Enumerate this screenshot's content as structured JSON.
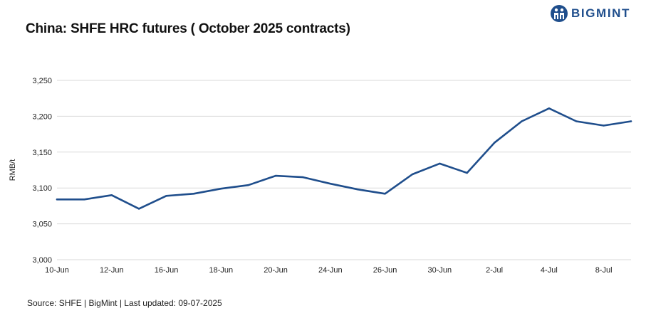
{
  "brand": {
    "name": "BIGMINT",
    "color": "#1f4e8c"
  },
  "chart_data": {
    "type": "line",
    "title": "China: SHFE HRC futures ( October 2025 contracts)",
    "ylabel": "RMB/t",
    "xlabel": "",
    "ylim": [
      3000,
      3250
    ],
    "yticks": [
      3000,
      3050,
      3100,
      3150,
      3200,
      3250
    ],
    "ytick_labels": [
      "3,000",
      "3,050",
      "3,100",
      "3,150",
      "3,200",
      "3,250"
    ],
    "xtick_labels": [
      "10-Jun",
      "12-Jun",
      "16-Jun",
      "18-Jun",
      "20-Jun",
      "24-Jun",
      "26-Jun",
      "30-Jun",
      "2-Jul",
      "4-Jul",
      "8-Jul"
    ],
    "xtick_indices": [
      0,
      2,
      4,
      6,
      8,
      10,
      12,
      14,
      16,
      18,
      20
    ],
    "x": [
      "10-Jun",
      "11-Jun",
      "12-Jun",
      "13-Jun",
      "16-Jun",
      "17-Jun",
      "18-Jun",
      "19-Jun",
      "20-Jun",
      "23-Jun",
      "24-Jun",
      "25-Jun",
      "26-Jun",
      "27-Jun",
      "30-Jun",
      "1-Jul",
      "2-Jul",
      "3-Jul",
      "4-Jul",
      "7-Jul",
      "8-Jul",
      "9-Jul"
    ],
    "series": [
      {
        "values": [
          3084,
          3084,
          3090,
          3071,
          3089,
          3092,
          3099,
          3104,
          3117,
          3115,
          3106,
          3098,
          3092,
          3119,
          3134,
          3121,
          3163,
          3193,
          3211,
          3193,
          3187,
          3193
        ]
      }
    ],
    "grid": true,
    "legend": "none",
    "line_color": "#1f4e8c"
  },
  "footer": {
    "source": "Source: SHFE | BigMint | Last updated: 09-07-2025"
  }
}
